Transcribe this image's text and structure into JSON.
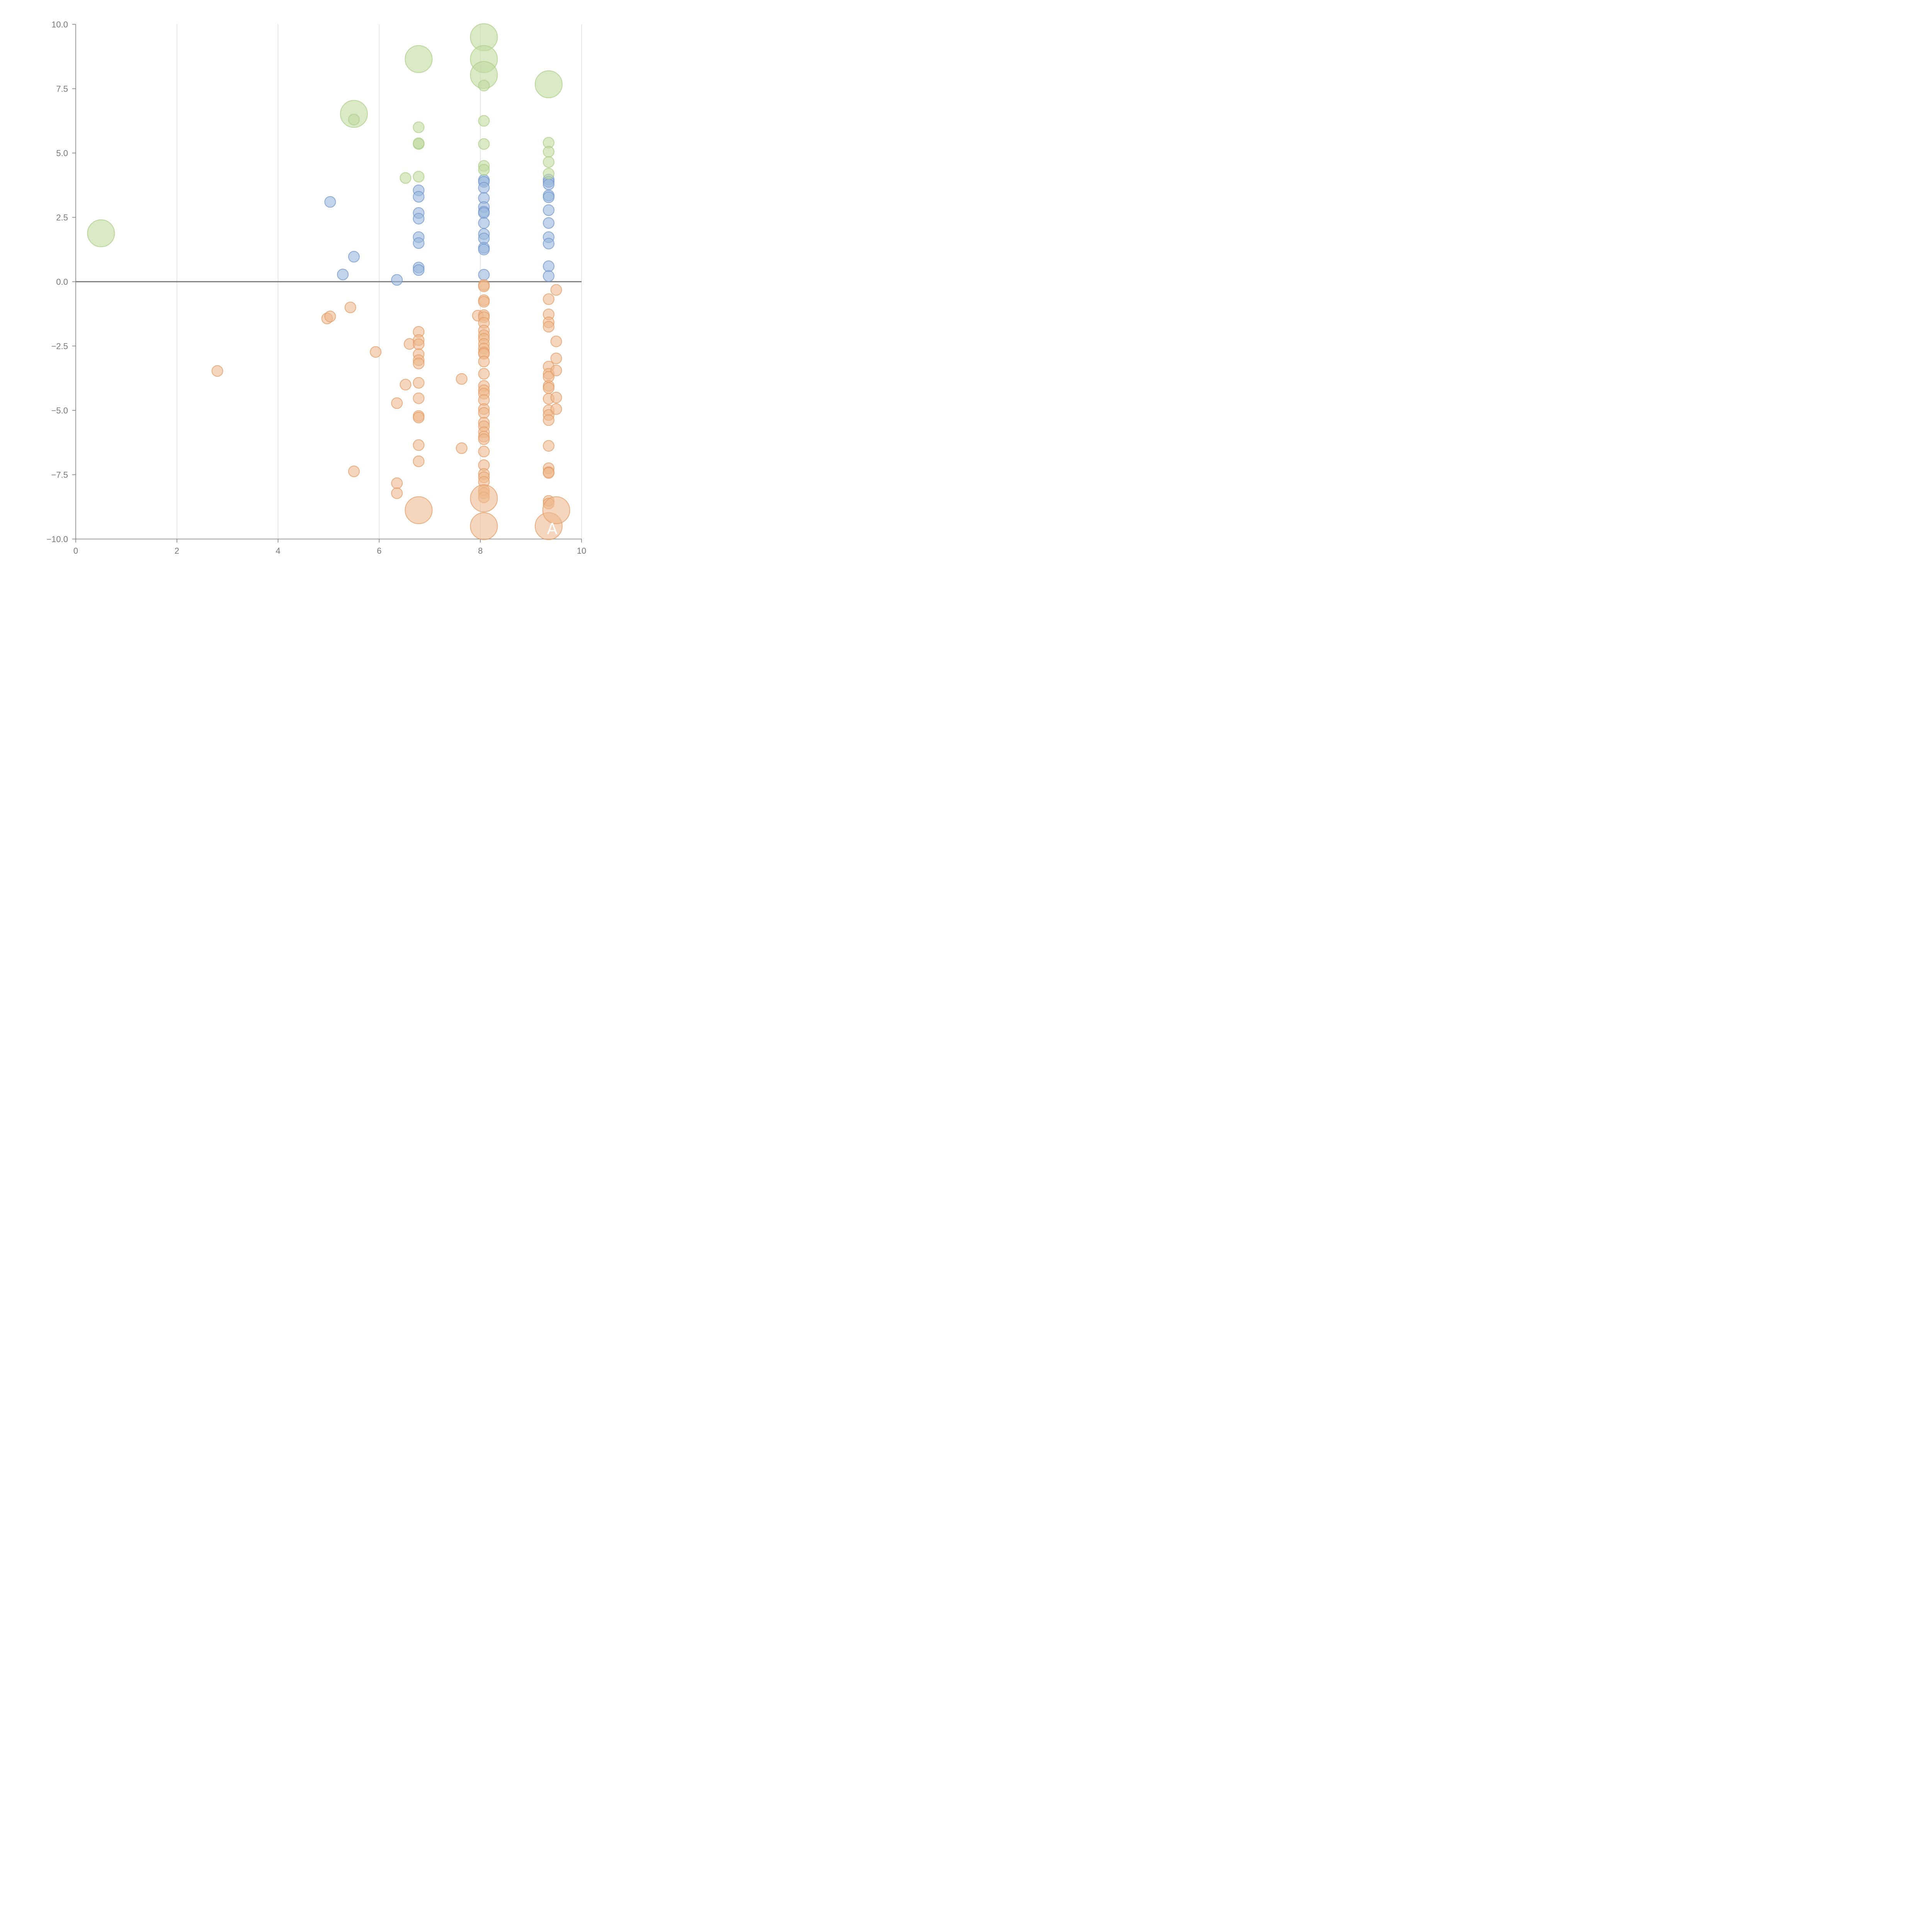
{
  "colors": {
    "blue_fill": "#9bb7dc",
    "blue_stroke": "#6f96cc",
    "orange_fill": "#efb98e",
    "orange_stroke": "#e39b64",
    "green_fill": "#c2dba0",
    "green_stroke": "#a9cd84"
  },
  "chart_data": {
    "type": "scatter",
    "title": "",
    "xlabel": "",
    "ylabel": "",
    "xlim": [
      0,
      10
    ],
    "ylim": [
      -10,
      10
    ],
    "x_ticks": [
      "0",
      "2",
      "4",
      "6",
      "8",
      "10"
    ],
    "y_ticks": [
      "10.0",
      "7.5",
      "5.0",
      "2.5",
      "0.0",
      "−2.5",
      "−5.0",
      "−7.5",
      "−10.0"
    ],
    "x_tick_values": [
      0,
      2,
      4,
      6,
      8,
      10
    ],
    "y_tick_values": [
      10,
      7.5,
      5,
      2.5,
      0,
      -2.5,
      -5,
      -7.5,
      -10
    ],
    "grid": "vertical",
    "reference_line_y": 0,
    "annotation": "A",
    "annotation_position": [
      9.42,
      -9.6
    ],
    "bubble_size_unit": "relative (1 = small, 2.5 = large)",
    "series": [
      {
        "name": "blue",
        "color": "blue",
        "points": [
          [
            5.03,
            3.1,
            1
          ],
          [
            5.5,
            0.97,
            1
          ],
          [
            5.28,
            0.28,
            1
          ],
          [
            6.35,
            0.07,
            1
          ],
          [
            6.78,
            3.55,
            1
          ],
          [
            6.78,
            3.3,
            1
          ],
          [
            6.78,
            2.67,
            1
          ],
          [
            6.78,
            2.45,
            1
          ],
          [
            6.78,
            1.73,
            1
          ],
          [
            6.78,
            1.5,
            1
          ],
          [
            6.78,
            0.55,
            1
          ],
          [
            6.78,
            0.45,
            1
          ],
          [
            8.07,
            3.95,
            1
          ],
          [
            8.07,
            3.88,
            1
          ],
          [
            8.07,
            3.65,
            1
          ],
          [
            8.07,
            3.25,
            1
          ],
          [
            8.07,
            2.9,
            1
          ],
          [
            8.07,
            2.72,
            1
          ],
          [
            8.07,
            2.67,
            1
          ],
          [
            8.07,
            2.28,
            1
          ],
          [
            8.07,
            1.85,
            1
          ],
          [
            8.07,
            1.68,
            1
          ],
          [
            8.07,
            1.32,
            1
          ],
          [
            8.07,
            1.25,
            1
          ],
          [
            8.07,
            0.27,
            1
          ],
          [
            9.35,
            3.97,
            1
          ],
          [
            9.35,
            3.88,
            1
          ],
          [
            9.35,
            3.78,
            1
          ],
          [
            9.35,
            3.35,
            1
          ],
          [
            9.35,
            3.28,
            1
          ],
          [
            9.35,
            2.78,
            1
          ],
          [
            9.35,
            2.28,
            1
          ],
          [
            9.35,
            1.73,
            1
          ],
          [
            9.35,
            1.48,
            1
          ],
          [
            9.35,
            0.6,
            1
          ],
          [
            9.35,
            0.22,
            1
          ]
        ]
      },
      {
        "name": "orange",
        "color": "orange",
        "points": [
          [
            2.8,
            -3.47,
            1
          ],
          [
            4.97,
            -1.43,
            1
          ],
          [
            5.03,
            -1.35,
            1
          ],
          [
            5.43,
            -1.0,
            1
          ],
          [
            5.5,
            -7.37,
            1
          ],
          [
            5.93,
            -2.73,
            1
          ],
          [
            6.35,
            -4.72,
            1
          ],
          [
            6.35,
            -7.83,
            1
          ],
          [
            6.35,
            -8.22,
            1
          ],
          [
            6.52,
            -4.0,
            1
          ],
          [
            6.6,
            -2.42,
            1
          ],
          [
            6.78,
            -1.95,
            1
          ],
          [
            6.78,
            -2.27,
            1
          ],
          [
            6.78,
            -2.43,
            1
          ],
          [
            6.78,
            -2.82,
            1
          ],
          [
            6.78,
            -3.05,
            1
          ],
          [
            6.78,
            -3.18,
            1
          ],
          [
            6.78,
            -3.93,
            1
          ],
          [
            6.78,
            -4.53,
            1
          ],
          [
            6.78,
            -5.22,
            1
          ],
          [
            6.78,
            -5.28,
            1
          ],
          [
            6.78,
            -6.35,
            1
          ],
          [
            6.78,
            -6.98,
            1
          ],
          [
            6.78,
            -8.88,
            2.5
          ],
          [
            7.63,
            -3.78,
            1
          ],
          [
            7.63,
            -6.47,
            1
          ],
          [
            7.95,
            -1.32,
            1
          ],
          [
            8.07,
            -0.13,
            1
          ],
          [
            8.07,
            -0.18,
            1
          ],
          [
            8.07,
            -0.72,
            1
          ],
          [
            8.07,
            -0.78,
            1
          ],
          [
            8.07,
            -1.3,
            1
          ],
          [
            8.07,
            -1.38,
            1
          ],
          [
            8.07,
            -1.6,
            1
          ],
          [
            8.07,
            -1.9,
            1
          ],
          [
            8.07,
            -2.08,
            1
          ],
          [
            8.07,
            -2.22,
            1
          ],
          [
            8.07,
            -2.42,
            1
          ],
          [
            8.07,
            -2.6,
            1
          ],
          [
            8.07,
            -2.75,
            1
          ],
          [
            8.07,
            -2.8,
            1
          ],
          [
            8.07,
            -3.1,
            1
          ],
          [
            8.07,
            -3.58,
            1
          ],
          [
            8.07,
            -4.05,
            1
          ],
          [
            8.07,
            -4.22,
            1
          ],
          [
            8.07,
            -4.35,
            1
          ],
          [
            8.07,
            -4.6,
            1
          ],
          [
            8.07,
            -4.95,
            1
          ],
          [
            8.07,
            -5.1,
            1
          ],
          [
            8.07,
            -5.48,
            1
          ],
          [
            8.07,
            -5.62,
            1
          ],
          [
            8.07,
            -5.85,
            1
          ],
          [
            8.07,
            -6.02,
            1
          ],
          [
            8.07,
            -6.12,
            1
          ],
          [
            8.07,
            -6.6,
            1
          ],
          [
            8.07,
            -7.13,
            1
          ],
          [
            8.07,
            -7.47,
            1
          ],
          [
            8.07,
            -7.6,
            1
          ],
          [
            8.07,
            -7.78,
            1
          ],
          [
            8.07,
            -8.1,
            1
          ],
          [
            8.07,
            -8.22,
            1
          ],
          [
            8.07,
            -8.38,
            1
          ],
          [
            8.07,
            -8.42,
            2.5
          ],
          [
            8.07,
            -9.5,
            2.5
          ],
          [
            9.35,
            -0.68,
            1
          ],
          [
            9.35,
            -1.27,
            1
          ],
          [
            9.35,
            -1.58,
            1
          ],
          [
            9.35,
            -1.75,
            1
          ],
          [
            9.35,
            -3.3,
            1
          ],
          [
            9.35,
            -3.58,
            1
          ],
          [
            9.35,
            -3.7,
            1
          ],
          [
            9.35,
            -4.05,
            1
          ],
          [
            9.35,
            -4.13,
            1
          ],
          [
            9.35,
            -4.55,
            1
          ],
          [
            9.35,
            -5.0,
            1
          ],
          [
            9.35,
            -5.18,
            1
          ],
          [
            9.35,
            -5.38,
            1
          ],
          [
            9.35,
            -6.38,
            1
          ],
          [
            9.35,
            -7.25,
            1
          ],
          [
            9.35,
            -7.4,
            1
          ],
          [
            9.35,
            -7.43,
            1
          ],
          [
            9.35,
            -8.52,
            1
          ],
          [
            9.35,
            -8.62,
            1
          ],
          [
            9.35,
            -9.5,
            2.5
          ],
          [
            9.5,
            -8.88,
            2.5
          ],
          [
            9.5,
            -0.32,
            1
          ],
          [
            9.5,
            -2.32,
            1
          ],
          [
            9.5,
            -2.98,
            1
          ],
          [
            9.5,
            -3.45,
            1
          ],
          [
            9.5,
            -4.5,
            1
          ],
          [
            9.5,
            -4.95,
            1
          ]
        ]
      },
      {
        "name": "green",
        "color": "green",
        "points": [
          [
            0.5,
            1.88,
            2.5
          ],
          [
            5.5,
            6.52,
            2.5
          ],
          [
            5.5,
            6.3,
            1
          ],
          [
            6.52,
            4.03,
            1
          ],
          [
            6.78,
            8.65,
            2.5
          ],
          [
            6.78,
            6.0,
            1
          ],
          [
            6.78,
            5.35,
            1
          ],
          [
            6.78,
            5.38,
            1
          ],
          [
            6.78,
            4.08,
            1
          ],
          [
            8.07,
            9.5,
            2.5
          ],
          [
            8.07,
            8.65,
            2.5
          ],
          [
            8.07,
            8.03,
            2.5
          ],
          [
            8.07,
            7.62,
            1
          ],
          [
            8.07,
            6.25,
            1
          ],
          [
            8.07,
            5.35,
            1
          ],
          [
            8.07,
            4.5,
            1
          ],
          [
            8.07,
            4.35,
            1
          ],
          [
            9.35,
            7.67,
            2.5
          ],
          [
            9.35,
            5.4,
            1
          ],
          [
            9.35,
            5.05,
            1
          ],
          [
            9.35,
            4.65,
            1
          ],
          [
            9.35,
            4.2,
            1
          ]
        ]
      }
    ]
  }
}
